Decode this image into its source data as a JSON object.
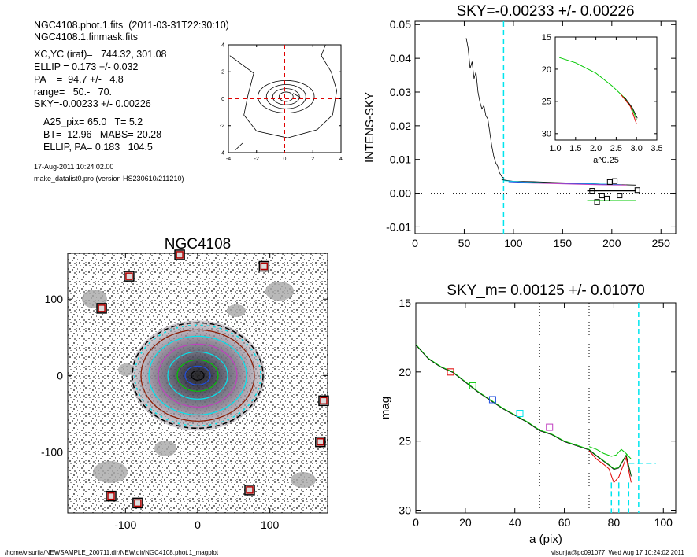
{
  "header": {
    "line1": "NGC4108.phot.1.fits  (2011-03-31T22:30:10)",
    "line2": "NGC4108.1.finmask.fits",
    "xcyc": "XC,YC (iraf)=   744.32, 301.08",
    "ellip": "ELLIP = 0.173 +/- 0.032",
    "pa": "PA    =  94.7 +/-   4.8",
    "range": "range=   50.-   70.",
    "sky": "SKY=-0.00233 +/- 0.00226",
    "a25": "A25_pix= 65.0   T= 5.2",
    "bt": "BT=  12.96   MABS=-20.28",
    "ellip_pa": "ELLIP, PA= 0.183   104.5",
    "date": "17-Aug-2011 10:24:02.00",
    "program": "make_datalist0.pro (version HS230610/211210)"
  },
  "footer": {
    "path": "/home/visurija/NEWSAMPLE_200711.dir/NEW.dir/NGC4108.phot.1_magplot",
    "user": "visurija@pc091077  Wed Aug 17 10:24:02 2011"
  },
  "colors": {
    "cyan": "#00e5ee",
    "red": "#e00000",
    "green": "#00c800",
    "blue": "#2050e0",
    "magenta": "#c040c0",
    "brown": "#8b1a00",
    "dotted": "#000000"
  },
  "chart_data": [
    {
      "id": "contour",
      "type": "contour",
      "xlim": [
        -4,
        4
      ],
      "ylim": [
        -4,
        4
      ],
      "xticks": [
        "-4",
        "-2",
        "0",
        "2",
        "4"
      ],
      "yticks": [
        "-4",
        "-2",
        "0",
        "2",
        "4"
      ],
      "crosshair": [
        0,
        0
      ]
    },
    {
      "id": "sky",
      "type": "line",
      "title": "SKY=-0.00233 +/- 0.00226",
      "ylabel": "INTENS-SKY",
      "xlim": [
        0,
        265
      ],
      "ylim": [
        -0.012,
        0.051
      ],
      "xticks": [
        "0",
        "50",
        "100",
        "150",
        "200",
        "250"
      ],
      "yticks": [
        "-0.01",
        "0.00",
        "0.01",
        "0.02",
        "0.03",
        "0.04",
        "0.05"
      ],
      "vline_cyan": 90,
      "profile": [
        [
          50,
          0.052
        ],
        [
          52,
          0.046
        ],
        [
          54,
          0.043
        ],
        [
          56,
          0.037
        ],
        [
          58,
          0.039
        ],
        [
          60,
          0.034
        ],
        [
          62,
          0.036
        ],
        [
          64,
          0.03
        ],
        [
          66,
          0.027
        ],
        [
          68,
          0.025
        ],
        [
          70,
          0.026
        ],
        [
          72,
          0.023
        ],
        [
          74,
          0.022
        ],
        [
          76,
          0.018
        ],
        [
          78,
          0.014
        ],
        [
          80,
          0.011
        ],
        [
          82,
          0.009
        ],
        [
          84,
          0.008
        ],
        [
          86,
          0.006
        ],
        [
          88,
          0.005
        ],
        [
          90,
          0.0045
        ]
      ],
      "sky_series": [
        {
          "color": "black",
          "points": [
            [
              88,
              0.004
            ],
            [
              100,
              0.0035
            ],
            [
              120,
              0.0034
            ],
            [
              140,
              0.0032
            ],
            [
              160,
              0.003
            ],
            [
              180,
              0.0028
            ],
            [
              200,
              0.0026
            ],
            [
              225,
              0.0024
            ]
          ]
        },
        {
          "color": "cyan",
          "points": [
            [
              90,
              0.0037
            ],
            [
              110,
              0.0033
            ],
            [
              130,
              0.0031
            ],
            [
              150,
              0.003
            ],
            [
              170,
              0.0029
            ],
            [
              190,
              0.0027
            ],
            [
              210,
              0.0025
            ]
          ]
        },
        {
          "color": "blue",
          "points": [
            [
              95,
              0.0034
            ],
            [
              120,
              0.0031
            ],
            [
              150,
              0.0029
            ],
            [
              180,
              0.0027
            ],
            [
              210,
              0.0025
            ]
          ]
        },
        {
          "color": "magenta",
          "points": [
            [
              100,
              0.0031
            ],
            [
              130,
              0.0029
            ],
            [
              160,
              0.0027
            ],
            [
              190,
              0.0025
            ],
            [
              215,
              0.0024
            ]
          ]
        }
      ],
      "step_black": [
        [
          175,
          0.0007
        ],
        [
          225,
          0.0007
        ]
      ],
      "step_green": [
        [
          175,
          -0.0022
        ],
        [
          225,
          -0.0022
        ]
      ],
      "squares": [
        [
          180,
          0.0007
        ],
        [
          185,
          -0.0026
        ],
        [
          190,
          -0.0007
        ],
        [
          195,
          -0.0016
        ],
        [
          198,
          0.0033
        ],
        [
          203,
          0.0036
        ],
        [
          208,
          -0.0007
        ],
        [
          226,
          0.0009
        ]
      ],
      "inset": {
        "xlabel": "a^0.25",
        "xlim": [
          1.0,
          3.5
        ],
        "ylim": [
          15,
          31
        ],
        "xticks": [
          "1.0",
          "1.5",
          "2.0",
          "2.5",
          "3.0",
          "3.5"
        ],
        "yticks": [
          "15",
          "20",
          "25",
          "30"
        ],
        "curve": [
          [
            1.1,
            18.2
          ],
          [
            1.5,
            19.0
          ],
          [
            2.0,
            20.6
          ],
          [
            2.4,
            22.6
          ],
          [
            2.7,
            24.4
          ],
          [
            2.9,
            26.2
          ],
          [
            3.0,
            27.8
          ]
        ]
      }
    },
    {
      "id": "image",
      "type": "image",
      "title": "NGC4108",
      "xlim": [
        -180,
        180
      ],
      "ylim": [
        -180,
        160
      ],
      "xticks": [
        "-100",
        "0",
        "100"
      ],
      "yticks": [
        "-100",
        "0",
        "100"
      ],
      "masked_stars": [
        [
          -25,
          158
        ],
        [
          -95,
          130
        ],
        [
          -133,
          88
        ],
        [
          92,
          143
        ],
        [
          175,
          -33
        ],
        [
          170,
          -87
        ],
        [
          72,
          -150
        ],
        [
          -120,
          -158
        ],
        [
          -83,
          -167
        ]
      ]
    },
    {
      "id": "mag",
      "type": "line",
      "title": "SKY_m=  0.00125 +/- 0.01070",
      "xlabel": "a (pix)",
      "ylabel": "mag",
      "xlim": [
        0,
        105
      ],
      "ylim": [
        30.2,
        15
      ],
      "xticks": [
        "0",
        "20",
        "40",
        "60",
        "80",
        "100"
      ],
      "yticks": [
        "15",
        "20",
        "25",
        "30"
      ],
      "vlines_dotted": [
        50,
        70
      ],
      "vlines_cyan": [
        90
      ],
      "short_cyan": [
        [
          79,
          28
        ],
        [
          82,
          28
        ],
        [
          86,
          28
        ]
      ],
      "dash_cyan": [
        [
          86,
          26.6
        ],
        [
          97,
          26.6
        ]
      ],
      "main_curve": [
        [
          0,
          18.0
        ],
        [
          5,
          19.0
        ],
        [
          10,
          19.6
        ],
        [
          15,
          20.0
        ],
        [
          20,
          20.7
        ],
        [
          25,
          21.4
        ],
        [
          30,
          22.0
        ],
        [
          35,
          22.6
        ],
        [
          40,
          23.1
        ],
        [
          45,
          23.6
        ],
        [
          50,
          24.2
        ],
        [
          55,
          24.5
        ],
        [
          60,
          25.0
        ],
        [
          65,
          25.3
        ],
        [
          70,
          25.6
        ],
        [
          72,
          25.9
        ],
        [
          75,
          26.3
        ],
        [
          78,
          26.7
        ],
        [
          80,
          27.0
        ],
        [
          82,
          26.9
        ],
        [
          85,
          26.0
        ],
        [
          87,
          27.5
        ]
      ],
      "red_dev": [
        [
          70,
          25.7
        ],
        [
          73,
          26.3
        ],
        [
          76,
          26.7
        ],
        [
          78,
          27.0
        ],
        [
          80,
          28.0
        ],
        [
          82,
          27.6
        ],
        [
          85,
          26.2
        ],
        [
          87,
          28.0
        ]
      ],
      "green_dev": [
        [
          70,
          25.4
        ],
        [
          73,
          25.6
        ],
        [
          76,
          25.9
        ],
        [
          79,
          26.1
        ],
        [
          81,
          26.0
        ],
        [
          83,
          25.6
        ],
        [
          85,
          25.9
        ],
        [
          87,
          26.3
        ]
      ],
      "markers": [
        {
          "x": 14,
          "y": 20.0,
          "color": "red"
        },
        {
          "x": 23,
          "y": 21.0,
          "color": "green"
        },
        {
          "x": 31,
          "y": 22.0,
          "color": "blue"
        },
        {
          "x": 42,
          "y": 23.0,
          "color": "cyan"
        },
        {
          "x": 54,
          "y": 24.0,
          "color": "magenta"
        }
      ]
    }
  ]
}
